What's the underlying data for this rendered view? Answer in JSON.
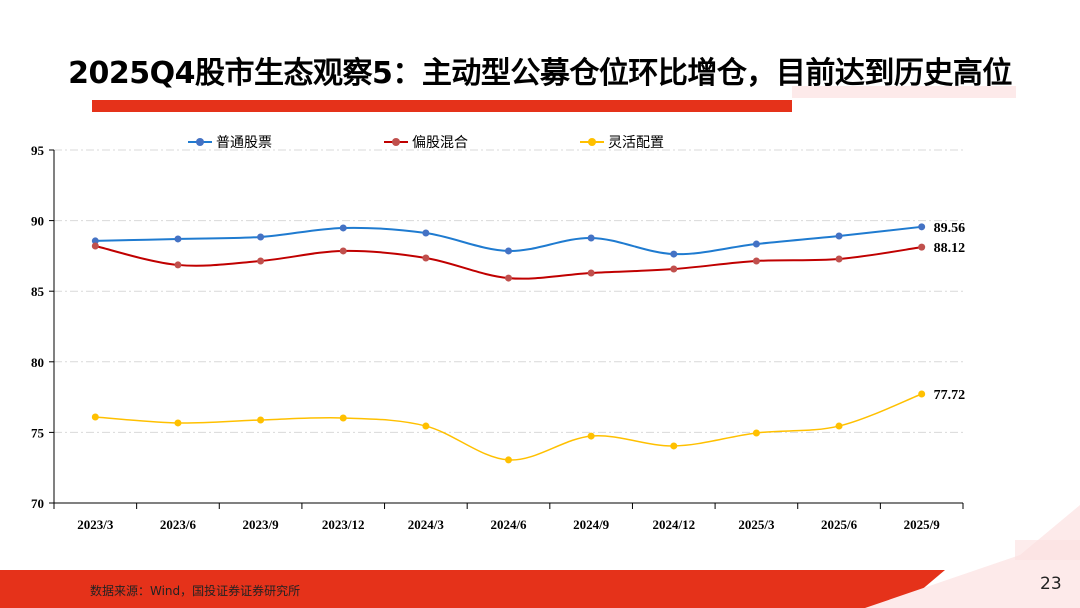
{
  "title": "2025Q4股市生态观察5：主动型公募仓位环比增仓，目前达到历史高位",
  "footer": {
    "source": "数据来源：Wind，国投证券证券研究所",
    "page_number": "23"
  },
  "colors": {
    "accent": "#e5321a",
    "accent_light": "#fdeaea"
  },
  "chart_data": {
    "type": "line",
    "smooth": true,
    "categories": [
      "2023/3",
      "2023/6",
      "2023/9",
      "2023/12",
      "2024/3",
      "2024/6",
      "2024/9",
      "2024/12",
      "2025/3",
      "2025/6",
      "2025/9"
    ],
    "ylim": [
      70,
      95
    ],
    "yticks": [
      70,
      75,
      80,
      85,
      90,
      95
    ],
    "grid": "horizontal dash-dot",
    "legend": "top",
    "series": [
      {
        "name": "普通股票",
        "color": "#1f7bd0",
        "marker": "#4472c4",
        "values": [
          88.56,
          88.7,
          88.84,
          89.48,
          89.12,
          87.85,
          88.77,
          87.63,
          88.34,
          88.91,
          89.56
        ],
        "last_label": "89.56"
      },
      {
        "name": "偏股混合",
        "color": "#c00000",
        "marker": "#c0504d",
        "values": [
          88.2,
          86.86,
          87.14,
          87.85,
          87.35,
          85.93,
          86.29,
          86.57,
          87.14,
          87.28,
          88.12
        ],
        "last_label": "88.12"
      },
      {
        "name": "灵活配置",
        "color": "#ffc000",
        "marker": "#ffc000",
        "values": [
          76.09,
          75.67,
          75.88,
          76.02,
          75.45,
          73.05,
          74.74,
          74.04,
          74.96,
          75.45,
          77.72
        ],
        "last_label": "77.72"
      }
    ]
  }
}
